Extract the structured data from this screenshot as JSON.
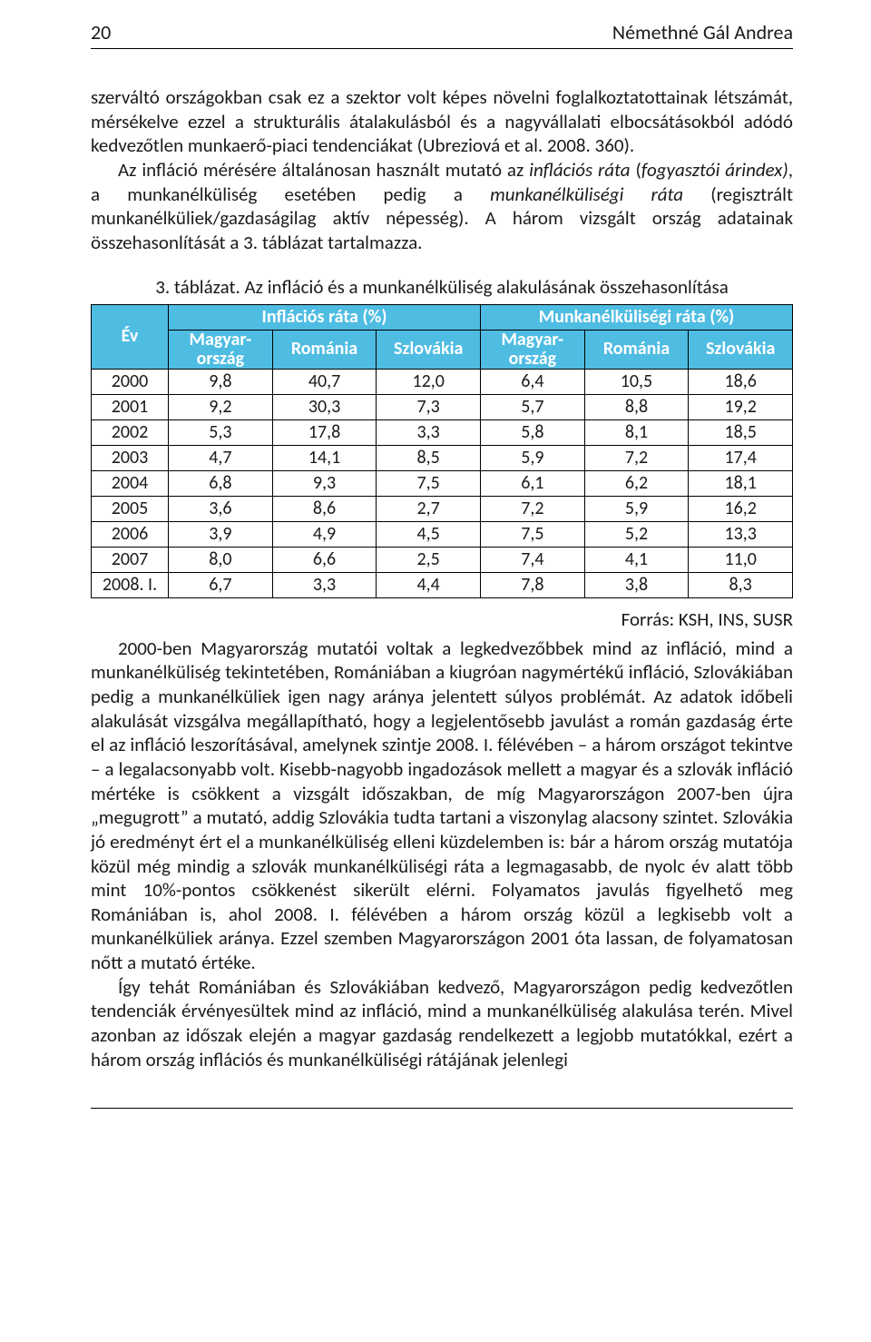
{
  "header": {
    "page_number": "20",
    "author": "Némethné Gál Andrea"
  },
  "para1": "szerváltó országokban csak ez a szektor volt képes növelni foglalkoztatottainak létszámát, mérsékelve ezzel a strukturális átalakulásból és a nagyvállalati elbocsátásokból adódó kedvezőtlen munkaerő-piaci tendenciákat (Ubreziová et al. 2008. 360).",
  "para2_html": "Az infláció mérésére általánosan használt mutató az <i>inflációs ráta</i> (<i>fogyasztói árindex)</i>, a munkanélküliség esetében pedig a <i>munkanélküliségi ráta</i> (regisztrált munkanélküliek/gazdaságilag aktív népesség). A három vizsgált ország adatainak összehasonlítását a 3. táblázat tartalmazza.",
  "table": {
    "caption": "3. táblázat. Az infláció és a munkanélküliség alakulásának összehasonlítása",
    "header_bg": "#4fbce2",
    "header_fg": "#ffffff",
    "groups": [
      "Inflációs ráta (%)",
      "Munkanélküliségi ráta (%)"
    ],
    "col_year": "Év",
    "countries": [
      "Magyar­ország",
      "Románia",
      "Szlovákia",
      "Magyar­ország",
      "Románia",
      "Szlovákia"
    ],
    "rows": [
      [
        "2000",
        "9,8",
        "40,7",
        "12,0",
        "6,4",
        "10,5",
        "18,6"
      ],
      [
        "2001",
        "9,2",
        "30,3",
        "7,3",
        "5,7",
        "8,8",
        "19,2"
      ],
      [
        "2002",
        "5,3",
        "17,8",
        "3,3",
        "5,8",
        "8,1",
        "18,5"
      ],
      [
        "2003",
        "4,7",
        "14,1",
        "8,5",
        "5,9",
        "7,2",
        "17,4"
      ],
      [
        "2004",
        "6,8",
        "9,3",
        "7,5",
        "6,1",
        "6,2",
        "18,1"
      ],
      [
        "2005",
        "3,6",
        "8,6",
        "2,7",
        "7,2",
        "5,9",
        "16,2"
      ],
      [
        "2006",
        "3,9",
        "4,9",
        "4,5",
        "7,5",
        "5,2",
        "13,3"
      ],
      [
        "2007",
        "8,0",
        "6,6",
        "2,5",
        "7,4",
        "4,1",
        "11,0"
      ],
      [
        "2008. I.",
        "6,7",
        "3,3",
        "4,4",
        "7,8",
        "3,8",
        "8,3"
      ]
    ],
    "source": "Forrás: KSH, INS, SUSR"
  },
  "para3": "2000-ben Magyarország mutatói voltak a legkedvezőbbek mind az infláció, mind a munkanélküliség tekintetében, Romániában a kiugróan nagymértékű infláció, Szlovákiában pedig a munkanélküliek igen nagy aránya jelentett súlyos problémát. Az adatok időbeli alakulását vizsgálva megállapítható, hogy a legjelentősebb javulást a román gazdaság érte el az infláció leszorításával, amelynek szintje 2008. I. félévében – a három országot tekintve – a legalacsonyabb volt. Kisebb-nagyobb ingadozások mellett a magyar és a szlovák infláció mértéke is csökkent a vizsgált időszakban, de míg Magyarországon 2007-ben újra „megugrott” a mutató, addig Szlovákia tudta tartani a viszonylag alacsony szintet. Szlovákia jó eredményt ért el a munkanélküliség elleni küzdelemben is: bár a három ország mutatója közül még mindig a szlovák munkanélküliségi ráta a legmagasabb, de nyolc év alatt több mint 10%-pontos csökkenést sikerült elérni. Folyamatos javulás figyelhető meg Romániában is, ahol 2008. I. félévében a három ország közül a legkisebb volt a munkanélküliek aránya. Ezzel szemben Magyarországon 2001 óta lassan, de folyamatosan nőtt a mutató értéke.",
  "para4": "Így tehát Romániában és Szlovákiában kedvező, Magyarországon pedig kedvezőtlen tendenciák érvényesültek mind az infláció, mind a munkanélküliség alakulása terén. Mivel azonban az időszak elején a magyar gazdaság rendelkezett a legjobb mutatókkal, ezért a három ország inflációs és munkanélküliségi rátájának jelenlegi"
}
